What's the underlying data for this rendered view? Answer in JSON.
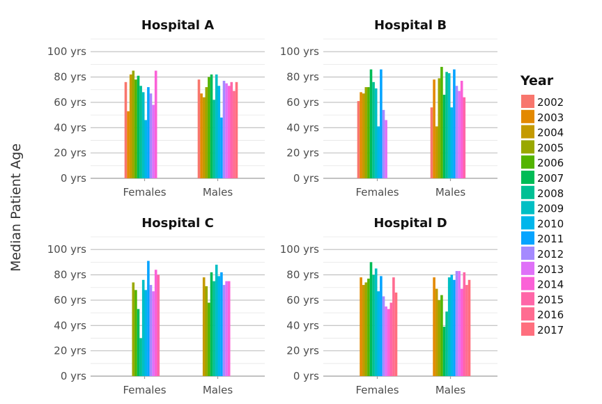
{
  "chart_data": {
    "type": "bar",
    "ylabel": "Median Patient Age",
    "y_tick_labels": [
      "0 yrs",
      "20 yrs",
      "40 yrs",
      "60 yrs",
      "80 yrs",
      "100 yrs"
    ],
    "y_tick_values": [
      0,
      20,
      40,
      60,
      80,
      100
    ],
    "ylim": [
      0,
      110
    ],
    "categories": [
      "Females",
      "Males"
    ],
    "legend": {
      "title": "Year",
      "position": "right",
      "years": [
        "2002",
        "2003",
        "2004",
        "2005",
        "2006",
        "2007",
        "2008",
        "2009",
        "2010",
        "2011",
        "2012",
        "2013",
        "2014",
        "2015",
        "2016",
        "2017"
      ],
      "colors": [
        "#F8766D",
        "#E38900",
        "#C49A00",
        "#99A800",
        "#53B400",
        "#00BC56",
        "#00C094",
        "#00BFC4",
        "#00B6EB",
        "#06A4FF",
        "#A58AFF",
        "#DF70F8",
        "#FB61D7",
        "#FF66A8",
        "#FF6C91",
        "#FF6F7E"
      ]
    },
    "panels": [
      {
        "title": "Hospital A",
        "series_values": {
          "Females": [
            76,
            53,
            82,
            85,
            78,
            81,
            73,
            68,
            46,
            72,
            67,
            58,
            85,
            0,
            0,
            0
          ],
          "Males": [
            78,
            67,
            64,
            72,
            80,
            82,
            62,
            82,
            73,
            48,
            77,
            75,
            73,
            76,
            69,
            76
          ]
        }
      },
      {
        "title": "Hospital B",
        "series_values": {
          "Females": [
            61,
            68,
            67,
            72,
            72,
            86,
            76,
            71,
            41,
            86,
            54,
            46,
            0,
            0,
            0,
            0
          ],
          "Males": [
            56,
            78,
            41,
            79,
            88,
            66,
            84,
            83,
            56,
            86,
            73,
            69,
            77,
            64,
            0,
            0
          ]
        }
      },
      {
        "title": "Hospital C",
        "series_values": {
          "Females": [
            0,
            0,
            0,
            74,
            68,
            53,
            30,
            76,
            68,
            91,
            72,
            67,
            84,
            80,
            0,
            0
          ],
          "Males": [
            0,
            0,
            78,
            71,
            58,
            82,
            75,
            88,
            79,
            82,
            72,
            75,
            75,
            0,
            0,
            0
          ]
        }
      },
      {
        "title": "Hospital D",
        "series_values": {
          "Females": [
            0,
            78,
            72,
            74,
            77,
            90,
            80,
            85,
            67,
            79,
            63,
            55,
            53,
            58,
            78,
            66
          ],
          "Males": [
            0,
            78,
            69,
            60,
            64,
            39,
            51,
            78,
            80,
            76,
            83,
            83,
            69,
            82,
            72,
            76
          ]
        }
      }
    ],
    "grid": true
  }
}
